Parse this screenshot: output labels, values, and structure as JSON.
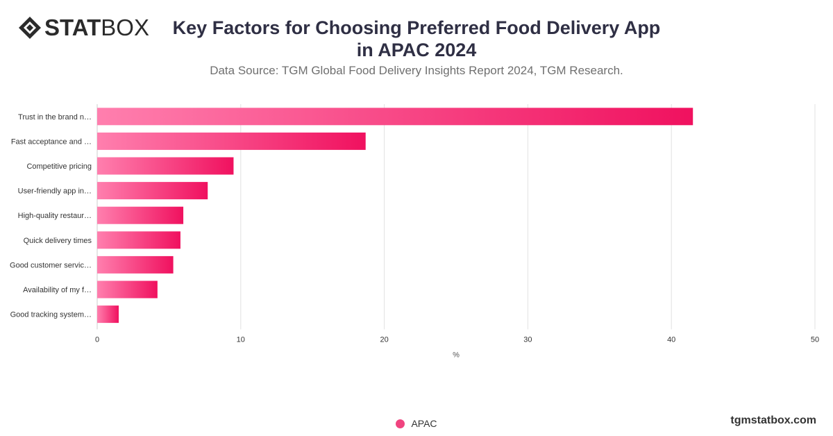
{
  "brand": {
    "bold": "STAT",
    "light": "BOX",
    "site": "tgmstatbox.com"
  },
  "chart_data": {
    "type": "bar",
    "orientation": "horizontal",
    "title": "Key Factors for Choosing Preferred Food Delivery App in APAC 2024",
    "subtitle": "Data Source: TGM Global Food Delivery Insights Report 2024, TGM Research.",
    "categories": [
      "Trust in the brand n…",
      "Fast acceptance and …",
      "Competitive pricing",
      "User-friendly app in…",
      "High-quality restaur…",
      "Quick delivery times",
      "Good customer servic…",
      "Availability of my f…",
      "Good tracking system…"
    ],
    "series": [
      {
        "name": "APAC",
        "values": [
          41.5,
          18.7,
          9.5,
          7.7,
          6.0,
          5.8,
          5.3,
          4.2,
          1.5
        ]
      }
    ],
    "xlabel": "%",
    "xlim": [
      0,
      50
    ],
    "xticks": [
      0,
      10,
      20,
      30,
      40,
      50
    ],
    "grid": true,
    "legend_position": "bottom",
    "colors": {
      "bar_start": "#ff7fae",
      "bar_end": "#f0115f",
      "legend": "#f0447f",
      "grid": "#e2e2e2",
      "tick_text": "#333333"
    }
  }
}
